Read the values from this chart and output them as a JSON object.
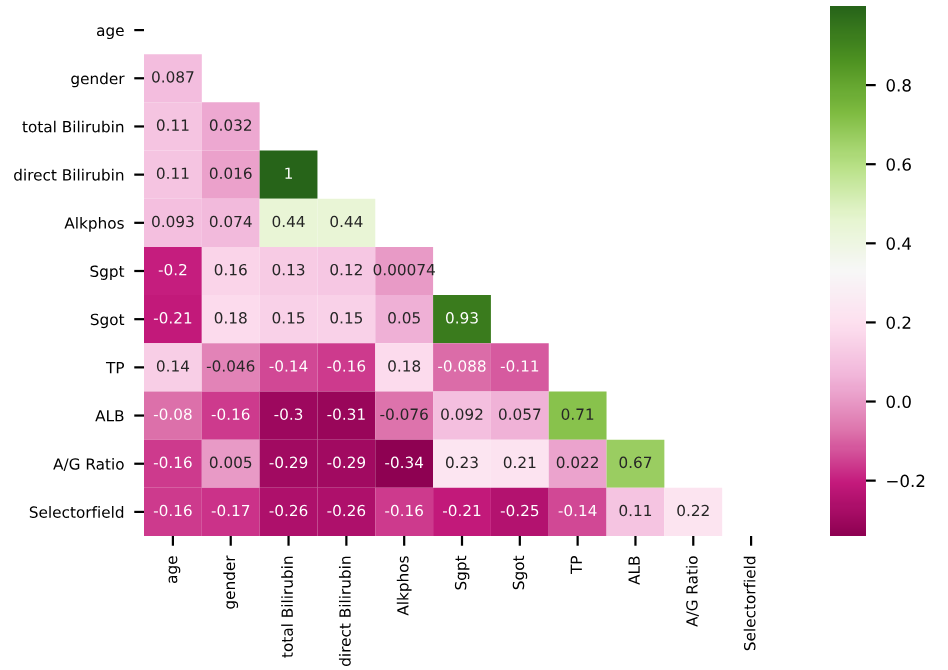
{
  "chart_data": {
    "type": "heatmap",
    "categories": [
      "age",
      "gender",
      "total Bilirubin",
      "direct Bilirubin",
      "Alkphos",
      "Sgpt",
      "Sgot",
      "TP",
      "ALB",
      "A/G Ratio",
      "Selectorfield"
    ],
    "y_categories": [
      "age",
      "gender",
      "total Bilirubin",
      "direct Bilirubin",
      "Alkphos",
      "Sgpt",
      "Sgot",
      "TP",
      "ALB",
      "A/G Ratio",
      "Selectorfield"
    ],
    "cells": [
      [
        null,
        null,
        null,
        null,
        null,
        null,
        null,
        null,
        null,
        null,
        null
      ],
      [
        0.087,
        null,
        null,
        null,
        null,
        null,
        null,
        null,
        null,
        null,
        null
      ],
      [
        0.11,
        0.032,
        null,
        null,
        null,
        null,
        null,
        null,
        null,
        null,
        null
      ],
      [
        0.11,
        0.016,
        1,
        null,
        null,
        null,
        null,
        null,
        null,
        null,
        null
      ],
      [
        0.093,
        0.074,
        0.44,
        0.44,
        null,
        null,
        null,
        null,
        null,
        null,
        null
      ],
      [
        -0.2,
        0.16,
        0.13,
        0.12,
        0.00074,
        null,
        null,
        null,
        null,
        null,
        null
      ],
      [
        -0.21,
        0.18,
        0.15,
        0.15,
        0.05,
        0.93,
        null,
        null,
        null,
        null,
        null
      ],
      [
        0.14,
        -0.046,
        -0.14,
        -0.16,
        0.18,
        -0.088,
        -0.11,
        null,
        null,
        null,
        null
      ],
      [
        -0.08,
        -0.16,
        -0.3,
        -0.31,
        -0.076,
        0.092,
        0.057,
        0.71,
        null,
        null,
        null
      ],
      [
        -0.16,
        0.005,
        -0.29,
        -0.29,
        -0.34,
        0.23,
        0.21,
        0.022,
        0.67,
        null,
        null
      ],
      [
        -0.16,
        -0.17,
        -0.26,
        -0.26,
        -0.16,
        -0.21,
        -0.25,
        -0.14,
        0.11,
        0.22,
        null
      ]
    ],
    "data_labels": true,
    "clim": [
      -0.34,
      1
    ],
    "cticks": [
      {
        "value": -0.2,
        "label": "−0.2"
      },
      {
        "value": 0.0,
        "label": "0.0"
      },
      {
        "value": 0.2,
        "label": "0.2"
      },
      {
        "value": 0.4,
        "label": "0.4"
      },
      {
        "value": 0.6,
        "label": "0.6"
      },
      {
        "value": 0.8,
        "label": "0.8"
      }
    ]
  }
}
